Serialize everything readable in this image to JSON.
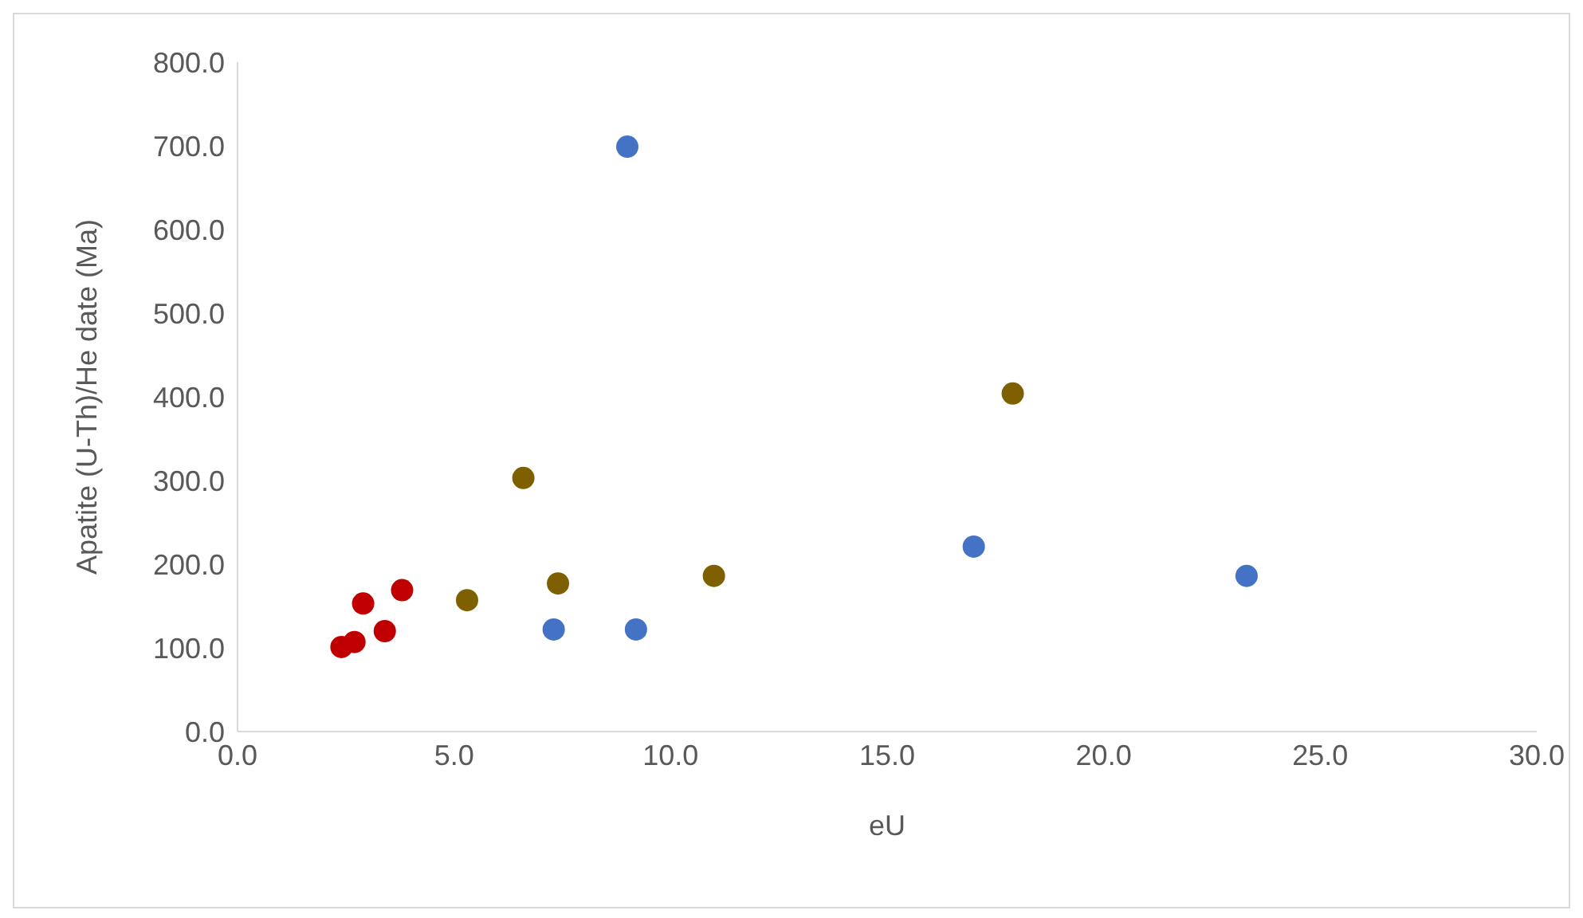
{
  "chart_data": {
    "type": "scatter",
    "xlabel": "eU",
    "ylabel": "Apatite (U-Th)/He date (Ma)",
    "xlim": [
      0,
      30
    ],
    "ylim": [
      0,
      800
    ],
    "xticks": [
      {
        "value": 0,
        "label": "0.0"
      },
      {
        "value": 5,
        "label": "5.0"
      },
      {
        "value": 10,
        "label": "10.0"
      },
      {
        "value": 15,
        "label": "15.0"
      },
      {
        "value": 20,
        "label": "20.0"
      },
      {
        "value": 25,
        "label": "25.0"
      },
      {
        "value": 30,
        "label": "30.0"
      }
    ],
    "yticks": [
      {
        "value": 0,
        "label": "0.0"
      },
      {
        "value": 100,
        "label": "100.0"
      },
      {
        "value": 200,
        "label": "200.0"
      },
      {
        "value": 300,
        "label": "300.0"
      },
      {
        "value": 400,
        "label": "400.0"
      },
      {
        "value": 500,
        "label": "500.0"
      },
      {
        "value": 600,
        "label": "600.0"
      },
      {
        "value": 700,
        "label": "700.0"
      },
      {
        "value": 800,
        "label": "800.0"
      }
    ],
    "grid": false,
    "legend": false,
    "marker": "circle",
    "series": [
      {
        "color": "#4472c4",
        "x": [
          9.0,
          7.3,
          9.2,
          17.0,
          23.3
        ],
        "values": [
          699,
          122,
          122,
          221,
          186
        ]
      },
      {
        "color": "#7f6000",
        "x": [
          6.6,
          5.3,
          7.4,
          11.0,
          17.9
        ],
        "values": [
          303,
          157,
          177,
          186,
          404
        ]
      },
      {
        "color": "#c00000",
        "x": [
          2.4,
          2.7,
          2.9,
          3.4,
          3.8
        ],
        "values": [
          101,
          107,
          153,
          120,
          169
        ]
      }
    ]
  }
}
